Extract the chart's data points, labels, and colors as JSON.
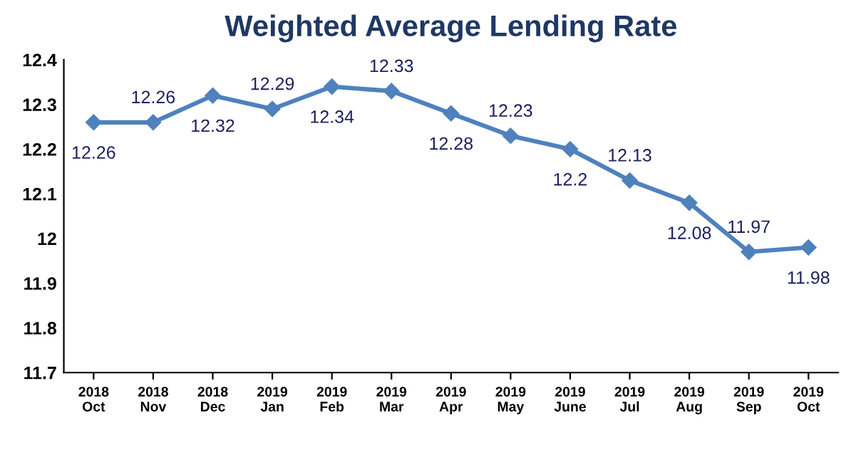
{
  "chart_data": {
    "type": "line",
    "title": "Weighted Average Lending Rate",
    "categories": [
      "2018\nOct",
      "2018\nNov",
      "2018\nDec",
      "2019\nJan",
      "2019\nFeb",
      "2019\nMar",
      "2019\nApr",
      "2019\nMay",
      "2019\nJune",
      "2019\nJul",
      "2019\nAug",
      "2019\nSep",
      "2019\nOct"
    ],
    "series": [
      {
        "color": "#4f81bd",
        "values": [
          12.26,
          12.26,
          12.32,
          12.29,
          12.34,
          12.33,
          12.28,
          12.23,
          12.2,
          12.13,
          12.08,
          11.97,
          11.98
        ]
      }
    ],
    "value_labels": [
      "12.26",
      "12.26",
      "12.32",
      "12.29",
      "12.34",
      "12.33",
      "12.28",
      "12.23",
      "12.2",
      "12.13",
      "12.08",
      "11.97",
      "11.98"
    ],
    "ylim": [
      11.7,
      12.4
    ],
    "yticks": [
      11.7,
      11.8,
      11.9,
      12,
      12.1,
      12.2,
      12.3,
      12.4
    ],
    "marker": "diamond",
    "line_style": "solid",
    "grid": false,
    "legend": false
  }
}
